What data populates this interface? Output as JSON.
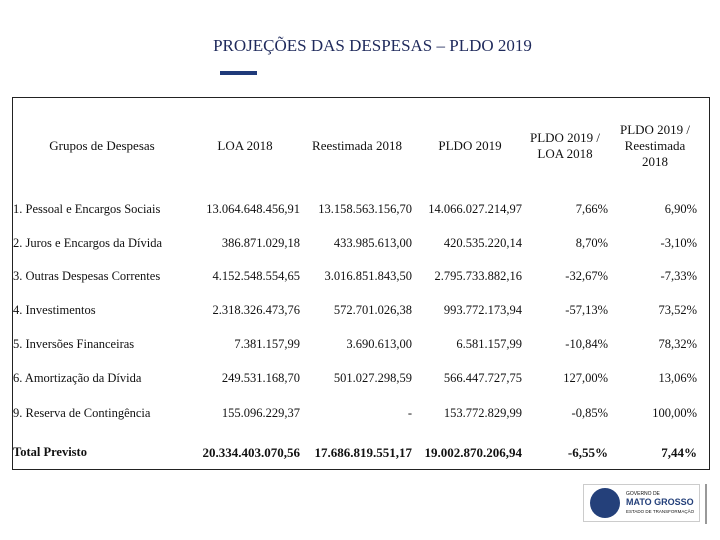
{
  "title": "PROJEÇÕES DAS DESPESAS – PLDO 2019",
  "table": {
    "header": [
      [
        "Grupos de Despesas"
      ],
      [
        "LOA 2018"
      ],
      [
        "Reestimada 2018"
      ],
      [
        "PLDO 2019"
      ],
      [
        "PLDO 2019 /",
        "LOA 2018"
      ],
      [
        "PLDO 2019 /",
        "Reestimada",
        "2018"
      ]
    ],
    "rows": [
      [
        "1. Pessoal e Encargos Sociais",
        "13.064.648.456,91",
        "13.158.563.156,70",
        "14.066.027.214,97",
        "7,66%",
        "6,90%"
      ],
      [
        "2. Juros e Encargos da Dívida",
        "386.871.029,18",
        "433.985.613,00",
        "420.535.220,14",
        "8,70%",
        "-3,10%"
      ],
      [
        "3. Outras Despesas Correntes",
        "4.152.548.554,65",
        "3.016.851.843,50",
        "2.795.733.882,16",
        "-32,67%",
        "-7,33%"
      ],
      [
        "4. Investimentos",
        "2.318.326.473,76",
        "572.701.026,38",
        "993.772.173,94",
        "-57,13%",
        "73,52%"
      ],
      [
        "5. Inversões Financeiras",
        "7.381.157,99",
        "3.690.613,00",
        "6.581.157,99",
        "-10,84%",
        "78,32%"
      ],
      [
        "6. Amortização da Dívida",
        "249.531.168,70",
        "501.027.298,59",
        "566.447.727,75",
        "127,00%",
        "13,06%"
      ],
      [
        "9. Reserva de Contingência",
        "155.096.229,37",
        "-",
        "153.772.829,99",
        "-0,85%",
        "100,00%"
      ],
      [
        "Total Previsto",
        "20.334.403.070,56",
        "17.686.819.551,17",
        "19.002.870.206,94",
        "-6,55%",
        "7,44%"
      ]
    ]
  },
  "logo": {
    "line1": "GOVERNO DE",
    "line2": "MATO GROSSO",
    "line3": "ESTADO DE TRANSFORMAÇÃO"
  }
}
